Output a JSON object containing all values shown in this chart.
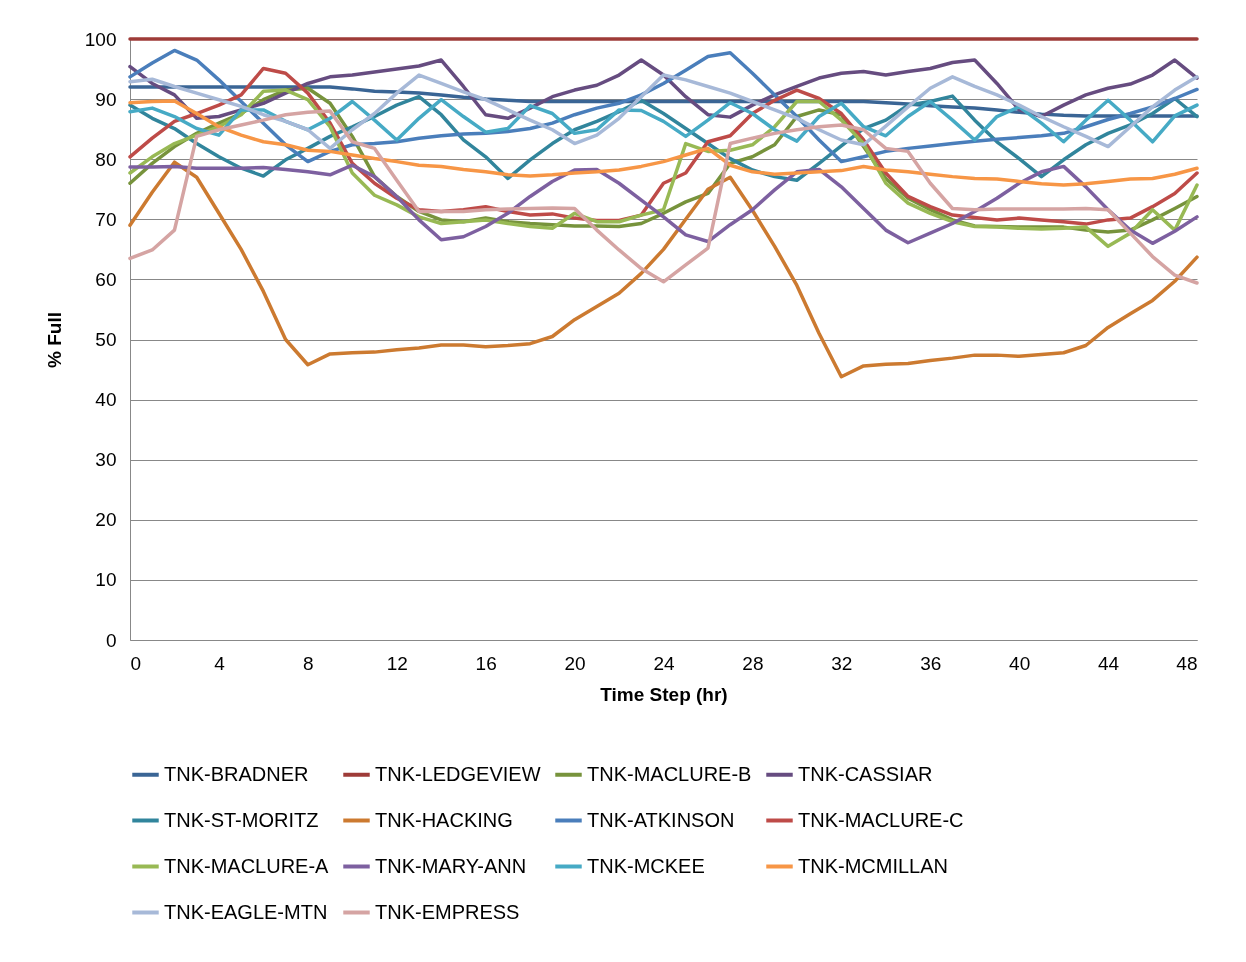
{
  "chart_data": {
    "type": "line",
    "xlabel": "Time Step (hr)",
    "ylabel": "% Full",
    "x": [
      0,
      1,
      2,
      3,
      4,
      5,
      6,
      7,
      8,
      9,
      10,
      11,
      12,
      13,
      14,
      15,
      16,
      17,
      18,
      19,
      20,
      21,
      22,
      23,
      24,
      25,
      26,
      27,
      28,
      29,
      30,
      31,
      32,
      33,
      34,
      35,
      36,
      37,
      38,
      39,
      40,
      41,
      42,
      43,
      44,
      45,
      46,
      47,
      48
    ],
    "xlim": [
      0,
      48
    ],
    "xticks": [
      0,
      4,
      8,
      12,
      16,
      20,
      24,
      28,
      32,
      36,
      40,
      44,
      48
    ],
    "ylim": [
      0,
      100
    ],
    "yticks": [
      0,
      10,
      20,
      30,
      40,
      50,
      60,
      70,
      80,
      90,
      100
    ],
    "grid": "y",
    "legend": "bottom",
    "series": [
      {
        "name": "TNK-BRADNER",
        "color": "#3a6595",
        "values": [
          92,
          92,
          92,
          92,
          92,
          92,
          92,
          92,
          92,
          92,
          91.7,
          91.3,
          91.2,
          91,
          90.7,
          90.3,
          90,
          89.8,
          89.6,
          89.6,
          89.6,
          89.6,
          89.6,
          89.6,
          89.6,
          89.6,
          89.6,
          89.6,
          89.6,
          89.6,
          89.6,
          89.6,
          89.6,
          89.6,
          89.4,
          89.2,
          88.9,
          88.7,
          88.5,
          88.2,
          87.8,
          87.5,
          87.3,
          87.2,
          87.2,
          87.2,
          87.2,
          87.2,
          87.2
        ]
      },
      {
        "name": "TNK-LEDGEVIEW",
        "color": "#9e3b38",
        "values": [
          100,
          100,
          100,
          100,
          100,
          100,
          100,
          100,
          100,
          100,
          100,
          100,
          100,
          100,
          100,
          100,
          100,
          100,
          100,
          100,
          100,
          100,
          100,
          100,
          100,
          100,
          100,
          100,
          100,
          100,
          100,
          100,
          100,
          100,
          100,
          100,
          100,
          100,
          100,
          100,
          100,
          100,
          100,
          100,
          100,
          100,
          100,
          100,
          100
        ]
      },
      {
        "name": "TNK-MACLURE-B",
        "color": "#77933c",
        "values": [
          76,
          79.3,
          82.1,
          84.3,
          86,
          87.6,
          89.9,
          91.5,
          91.8,
          89.3,
          83.8,
          77.1,
          73.8,
          71.3,
          69.9,
          69.6,
          70.2,
          69.6,
          69.3,
          69.1,
          68.9,
          68.9,
          68.8,
          69.3,
          71,
          72.9,
          74.3,
          79.3,
          80.4,
          82.4,
          87.1,
          88.2,
          87.4,
          82.1,
          76.8,
          73.5,
          71.6,
          69.9,
          68.9,
          68.8,
          68.7,
          68.7,
          68.7,
          68.2,
          67.9,
          68.2,
          69.9,
          71.8,
          73.8
        ]
      },
      {
        "name": "TNK-CASSIAR",
        "color": "#664c80",
        "values": [
          95.4,
          92.6,
          90.7,
          86.8,
          87.1,
          88.2,
          89.3,
          91,
          92.6,
          93.7,
          94,
          94.5,
          95,
          95.5,
          96.5,
          92.1,
          87.4,
          86.8,
          88.5,
          90.4,
          91.5,
          92.3,
          94,
          96.5,
          94,
          90.4,
          87.4,
          87,
          89,
          90.7,
          92.1,
          93.5,
          94.3,
          94.6,
          94,
          94.6,
          95.1,
          96.1,
          96.5,
          92.6,
          88.2,
          87.1,
          89,
          90.7,
          91.8,
          92.5,
          94,
          96.5,
          93.5
        ]
      },
      {
        "name": "TNK-ST-MORITZ",
        "color": "#31859c",
        "values": [
          89,
          86.8,
          85.1,
          82.6,
          80.4,
          78.5,
          77.2,
          79.9,
          81.8,
          83.8,
          85.4,
          87.1,
          89,
          90.4,
          87.4,
          83.2,
          80.4,
          76.8,
          79.9,
          82.6,
          84.9,
          86.3,
          87.9,
          89.8,
          87.6,
          85.1,
          82.6,
          80.1,
          78.2,
          77.1,
          76.5,
          79.3,
          82.2,
          85.1,
          86.5,
          89,
          89.6,
          90.5,
          86.5,
          82.9,
          80.1,
          77.1,
          79.9,
          82.4,
          84.3,
          85.7,
          87.6,
          90.1,
          87.1
        ]
      },
      {
        "name": "TNK-HACKING",
        "color": "#cc7a30",
        "values": [
          69,
          74.5,
          79.5,
          77,
          71,
          65,
          58,
          50,
          45.8,
          47.6,
          47.8,
          47.9,
          48.3,
          48.6,
          49.1,
          49.1,
          48.8,
          49,
          49.3,
          50.5,
          53.3,
          55.5,
          57.7,
          61,
          65,
          70,
          75,
          77,
          71.5,
          65.5,
          59,
          51,
          43.8,
          45.6,
          45.9,
          46,
          46.5,
          46.9,
          47.4,
          47.4,
          47.2,
          47.5,
          47.8,
          49,
          52,
          54.3,
          56.5,
          59.7,
          63.7
        ]
      },
      {
        "name": "TNK-ATKINSON",
        "color": "#4a7ebb",
        "values": [
          93.7,
          96,
          98.1,
          96.5,
          93.2,
          89.6,
          86,
          82.4,
          79.6,
          81.3,
          82.4,
          82.6,
          82.9,
          83.5,
          83.9,
          84.2,
          84.3,
          84.6,
          85.1,
          86,
          87.4,
          88.5,
          89.3,
          90.7,
          92.6,
          94.8,
          97.1,
          97.7,
          94.3,
          90.7,
          87.1,
          83.2,
          79.6,
          80.4,
          81.3,
          81.8,
          82.2,
          82.6,
          83,
          83.3,
          83.6,
          83.9,
          84.3,
          85.4,
          86.6,
          87.6,
          88.7,
          90.1,
          91.6
        ]
      },
      {
        "name": "TNK-MACLURE-C",
        "color": "#be4b48",
        "values": [
          80.4,
          83.5,
          86.3,
          87.6,
          89,
          90.7,
          95.1,
          94.3,
          91,
          86,
          79.3,
          76,
          73.5,
          71.6,
          71.3,
          71.6,
          72.1,
          71.3,
          70.7,
          70.9,
          70.2,
          69.8,
          69.8,
          70.7,
          76,
          77.7,
          82.9,
          83.9,
          87.6,
          89.8,
          91.5,
          90.1,
          87.6,
          83.2,
          77.7,
          73.8,
          72.1,
          70.7,
          70.3,
          69.9,
          70.2,
          69.9,
          69.6,
          69.2,
          69.9,
          70.2,
          72.1,
          74.3,
          77.7
        ]
      },
      {
        "name": "TNK-MACLURE-A",
        "color": "#98b954",
        "values": [
          77.7,
          80.4,
          82.6,
          84,
          85.4,
          87.4,
          91.3,
          91.5,
          89.9,
          85.4,
          77.7,
          74,
          72.4,
          70.4,
          69.3,
          69.6,
          69.9,
          69.3,
          68.8,
          68.5,
          71,
          69.6,
          69.6,
          70.7,
          71.6,
          82.6,
          81.3,
          81.5,
          82.4,
          85.4,
          89.6,
          89.6,
          86.5,
          82.6,
          76,
          72.7,
          71,
          69.6,
          68.8,
          68.7,
          68.5,
          68.4,
          68.5,
          68.7,
          65.5,
          67.7,
          71.6,
          68.2,
          75.7
        ]
      },
      {
        "name": "TNK-MARY-ANN",
        "color": "#7d60a0",
        "values": [
          78.7,
          78.7,
          78.8,
          78.5,
          78.5,
          78.5,
          78.6,
          78.3,
          77.9,
          77.4,
          79,
          77.1,
          73.8,
          69.9,
          66.6,
          67.1,
          68.8,
          71,
          73.8,
          76.3,
          78.2,
          78.3,
          76,
          73.2,
          70.4,
          67.4,
          66.3,
          69.1,
          71.6,
          74.9,
          77.9,
          78.3,
          75.4,
          71.8,
          68.2,
          66.1,
          67.7,
          69.3,
          71.3,
          73.5,
          76,
          77.9,
          78.8,
          75.4,
          71.6,
          68.2,
          66,
          68,
          70.4
        ]
      },
      {
        "name": "TNK-MCKEE",
        "color": "#46aac5",
        "values": [
          87.9,
          88.5,
          87.1,
          85.1,
          84,
          88.2,
          88.2,
          86.3,
          84.9,
          86.8,
          89.6,
          86.5,
          83.2,
          86.8,
          89.9,
          87.1,
          84.5,
          85.1,
          88.9,
          87.6,
          84.3,
          84.9,
          88.2,
          88.1,
          86.3,
          83.8,
          86.5,
          89.4,
          87.6,
          84.9,
          83,
          87.1,
          89.3,
          85.4,
          83.9,
          87.1,
          89.6,
          86.5,
          83.2,
          87.1,
          88.7,
          86,
          82.9,
          86.5,
          89.8,
          86.5,
          82.9,
          87.2,
          89
        ]
      },
      {
        "name": "TNK-MCMILLAN",
        "color": "#f79646",
        "values": [
          89.4,
          89.6,
          89.7,
          87.6,
          85.4,
          84,
          82.9,
          82.4,
          81.5,
          81.3,
          80.7,
          80.1,
          79.6,
          79,
          78.8,
          78.3,
          77.9,
          77.4,
          77.2,
          77.4,
          77.7,
          77.9,
          78.2,
          78.8,
          79.6,
          80.7,
          81.8,
          79,
          77.9,
          77.5,
          77.7,
          77.9,
          78.1,
          78.8,
          78.2,
          77.9,
          77.5,
          77.1,
          76.8,
          76.7,
          76.3,
          75.9,
          75.7,
          75.9,
          76.3,
          76.7,
          76.8,
          77.5,
          78.5
        ]
      },
      {
        "name": "TNK-EAGLE-MTN",
        "color": "#a7b9d8",
        "values": [
          92.9,
          93.3,
          92.1,
          91,
          89.9,
          88.8,
          87.4,
          86.3,
          84.9,
          81.8,
          84.9,
          87.6,
          91,
          94,
          92.6,
          91.2,
          89.9,
          88.2,
          86.5,
          84.9,
          82.6,
          84,
          86.8,
          90.4,
          94,
          93.2,
          92.1,
          91,
          89.6,
          88.2,
          86.8,
          84.9,
          83.2,
          82.4,
          85.5,
          88.7,
          91.8,
          93.7,
          92.1,
          90.7,
          89,
          87.1,
          85.4,
          83.8,
          82.1,
          85.4,
          88.7,
          91.5,
          93.7
        ]
      },
      {
        "name": "TNK-EMPRESS",
        "color": "#d5a4a3",
        "values": [
          63.5,
          64.9,
          68.2,
          83.8,
          84.9,
          85.7,
          86.5,
          87.4,
          87.8,
          88,
          82.9,
          81.8,
          76.5,
          71.3,
          71.3,
          71.3,
          71.6,
          71.7,
          71.8,
          71.9,
          71.8,
          68.2,
          64.9,
          61.8,
          59.6,
          62.4,
          65.2,
          82.6,
          83.5,
          84.3,
          84.9,
          85.4,
          85.7,
          84.9,
          81.8,
          81.3,
          76,
          71.8,
          71.6,
          71.7,
          71.7,
          71.7,
          71.7,
          71.8,
          71.6,
          67.7,
          63.8,
          60.7,
          59.4
        ]
      }
    ]
  }
}
